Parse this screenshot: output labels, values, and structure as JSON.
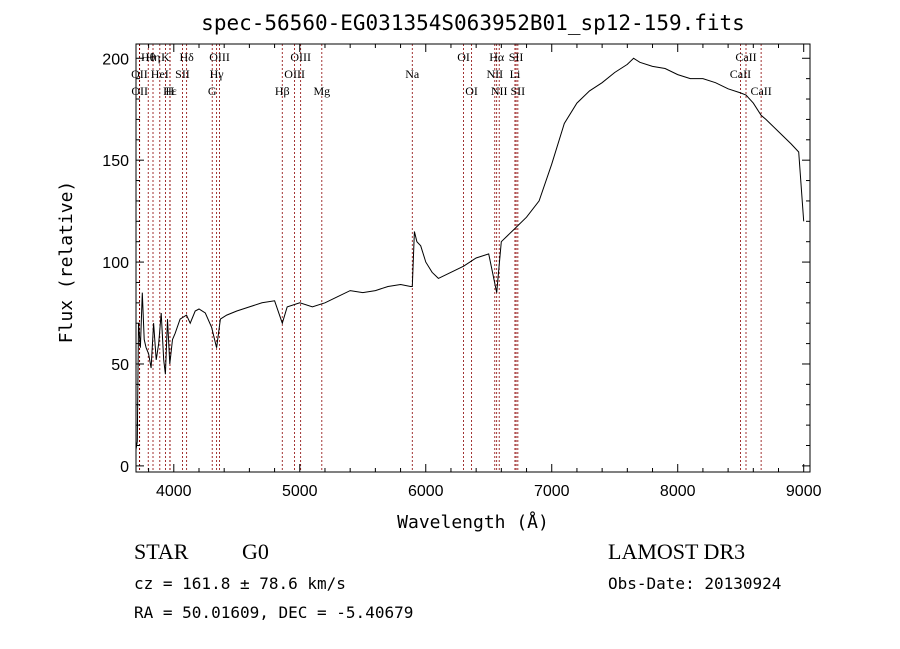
{
  "chart_data": {
    "type": "line",
    "title": "spec-56560-EG031354S063952B01_sp12-159.fits",
    "xlabel": "Wavelength (Å)",
    "ylabel": "Flux (relative)",
    "xlim": [
      3700,
      9050
    ],
    "ylim": [
      -3,
      207
    ],
    "xticks": [
      4000,
      5000,
      6000,
      7000,
      8000,
      9000
    ],
    "yticks": [
      0,
      50,
      100,
      150,
      200
    ],
    "series": [
      {
        "name": "flux",
        "x": [
          3700,
          3710,
          3720,
          3735,
          3750,
          3765,
          3780,
          3800,
          3820,
          3840,
          3860,
          3880,
          3900,
          3920,
          3933,
          3950,
          3968,
          3990,
          4010,
          4050,
          4101,
          4130,
          4170,
          4200,
          4250,
          4300,
          4340,
          4370,
          4420,
          4500,
          4600,
          4700,
          4800,
          4861,
          4900,
          5000,
          5100,
          5200,
          5300,
          5400,
          5500,
          5600,
          5700,
          5800,
          5880,
          5893,
          5910,
          5930,
          5960,
          6000,
          6050,
          6100,
          6200,
          6300,
          6400,
          6500,
          6563,
          6600,
          6700,
          6800,
          6900,
          7000,
          7100,
          7200,
          7300,
          7400,
          7500,
          7600,
          7650,
          7700,
          7800,
          7900,
          8000,
          8100,
          8200,
          8300,
          8400,
          8498,
          8542,
          8600,
          8662,
          8700,
          8800,
          8900,
          8960,
          9000
        ],
        "y": [
          8,
          12,
          70,
          58,
          85,
          62,
          58,
          55,
          48,
          70,
          52,
          60,
          75,
          52,
          45,
          72,
          50,
          62,
          65,
          72,
          74,
          70,
          76,
          77,
          75,
          68,
          58,
          72,
          74,
          76,
          78,
          80,
          81,
          70,
          78,
          80,
          78,
          80,
          83,
          86,
          85,
          86,
          88,
          89,
          88,
          88,
          115,
          110,
          108,
          100,
          95,
          92,
          95,
          98,
          102,
          104,
          85,
          110,
          116,
          122,
          130,
          148,
          168,
          178,
          184,
          188,
          193,
          197,
          200,
          198,
          196,
          195,
          192,
          190,
          190,
          188,
          185,
          183,
          182,
          178,
          172,
          170,
          164,
          158,
          154,
          120
        ]
      }
    ],
    "annotations": [
      {
        "label": "Hθ",
        "x": 3797,
        "row": 1
      },
      {
        "label": "Hη",
        "x": 3835,
        "row": 1
      },
      {
        "label": "K",
        "x": 3934,
        "row": 1
      },
      {
        "label": "Hδ",
        "x": 4102,
        "row": 1
      },
      {
        "label": "OIII",
        "x": 4363,
        "row": 1
      },
      {
        "label": "OIII",
        "x": 5007,
        "row": 1
      },
      {
        "label": "OI",
        "x": 6300,
        "row": 1
      },
      {
        "label": "Hα",
        "x": 6563,
        "row": 1
      },
      {
        "label": "SII",
        "x": 6717,
        "row": 1
      },
      {
        "label": "CaII",
        "x": 8542,
        "row": 1
      },
      {
        "label": "OII",
        "x": 3727,
        "row": 2
      },
      {
        "label": "HeI",
        "x": 3889,
        "row": 2
      },
      {
        "label": "SII",
        "x": 4069,
        "row": 2
      },
      {
        "label": "Hγ",
        "x": 4340,
        "row": 2
      },
      {
        "label": "OIII",
        "x": 4959,
        "row": 2
      },
      {
        "label": "Na",
        "x": 5893,
        "row": 2
      },
      {
        "label": "NII",
        "x": 6548,
        "row": 2
      },
      {
        "label": "Li",
        "x": 6708,
        "row": 2
      },
      {
        "label": "CaII",
        "x": 8498,
        "row": 2
      },
      {
        "label": "OII",
        "x": 3729,
        "row": 3
      },
      {
        "label": "Hε",
        "x": 3970,
        "row": 3
      },
      {
        "label": "H",
        "x": 3969,
        "row": 3
      },
      {
        "label": "G",
        "x": 4305,
        "row": 3
      },
      {
        "label": "Hβ",
        "x": 4861,
        "row": 3
      },
      {
        "label": "Mg",
        "x": 5175,
        "row": 3
      },
      {
        "label": "OI",
        "x": 6364,
        "row": 3
      },
      {
        "label": "NII",
        "x": 6583,
        "row": 3
      },
      {
        "label": "SII",
        "x": 6731,
        "row": 3
      },
      {
        "label": "CaII",
        "x": 8662,
        "row": 3
      }
    ]
  },
  "info": {
    "class": "STAR",
    "subclass": "G0",
    "survey": "LAMOST DR3",
    "cz": "cz = 161.8 ± 78.6 km/s",
    "obs_date": "Obs-Date: 20130924",
    "coords": "RA =  50.01609, DEC =  -5.40679"
  },
  "colors": {
    "line": "#000000",
    "marker": "#8b0000"
  }
}
